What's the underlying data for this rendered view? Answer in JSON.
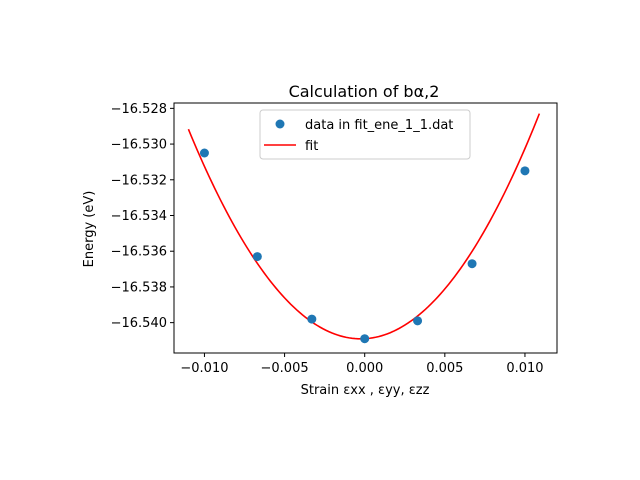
{
  "chart_data": {
    "type": "scatter",
    "title": "Calculation of bα,2",
    "xlabel": "Strain εxx , εyy, εzz",
    "ylabel": "Energy (eV)",
    "xlim": [
      -0.0119,
      0.012
    ],
    "ylim": [
      -16.5417,
      -16.5277
    ],
    "xticks": [
      -0.01,
      -0.005,
      0.0,
      0.005,
      0.01
    ],
    "xtick_labels": [
      "−0.010",
      "−0.005",
      "0.000",
      "0.005",
      "0.010"
    ],
    "yticks": [
      -16.54,
      -16.538,
      -16.536,
      -16.534,
      -16.532,
      -16.53,
      -16.528
    ],
    "ytick_labels": [
      "−16.540",
      "−16.538",
      "−16.536",
      "−16.534",
      "−16.532",
      "−16.530",
      "−16.528"
    ],
    "grid": false,
    "legend_position": "top-center",
    "series": [
      {
        "name": "data in fit_ene_1_1.dat",
        "kind": "scatter",
        "color": "#1f77b4",
        "x": [
          -0.01,
          -0.0067,
          -0.0033,
          0.0,
          0.0033,
          0.0067,
          0.01
        ],
        "y": [
          -16.5305,
          -16.5363,
          -16.5398,
          -16.5409,
          -16.5399,
          -16.5367,
          -16.5315
        ]
      },
      {
        "name": "fit",
        "kind": "line",
        "color": "#ff0000",
        "x_range": [
          -0.011,
          0.0109
        ],
        "coefficients": {
          "a": 101.5,
          "b": 0.05,
          "c": -16.5409
        }
      }
    ]
  }
}
